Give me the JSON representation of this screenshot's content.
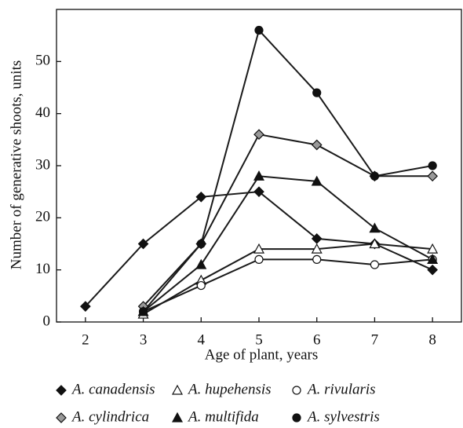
{
  "chart_data": {
    "type": "line",
    "x_label": "Age of plant, years",
    "y_label": "Number of generative shoots, units",
    "x": [
      2,
      3,
      4,
      5,
      6,
      7,
      8
    ],
    "xlim": [
      1.5,
      8.5
    ],
    "xticks": [
      2,
      3,
      4,
      5,
      6,
      7,
      8
    ],
    "ylim": [
      0,
      60
    ],
    "yticks": [
      0,
      10,
      20,
      30,
      40,
      50
    ],
    "line_color": "#1a1a1a",
    "series": [
      {
        "name": "A. canadensis",
        "marker": "diamond",
        "color": "#111111",
        "values": [
          3,
          15,
          24,
          25,
          16,
          15,
          10
        ]
      },
      {
        "name": "A. hupehensis",
        "marker": "triangle",
        "color": "#ffffff",
        "values": [
          null,
          1.5,
          8,
          14,
          14,
          15,
          14
        ]
      },
      {
        "name": "A. rivularis",
        "marker": "circle",
        "color": "#ffffff",
        "values": [
          null,
          2,
          7,
          12,
          12,
          11,
          12
        ]
      },
      {
        "name": "A. cylindrica",
        "marker": "diamond",
        "color": "#999999",
        "values": [
          null,
          3,
          15,
          36,
          34,
          28,
          28
        ]
      },
      {
        "name": "A. multifida",
        "marker": "triangle",
        "color": "#111111",
        "values": [
          null,
          2,
          11,
          28,
          27,
          18,
          12
        ]
      },
      {
        "name": "A. sylvestris",
        "marker": "circle",
        "color": "#111111",
        "values": [
          null,
          2,
          15,
          56,
          44,
          28,
          30
        ]
      }
    ]
  }
}
